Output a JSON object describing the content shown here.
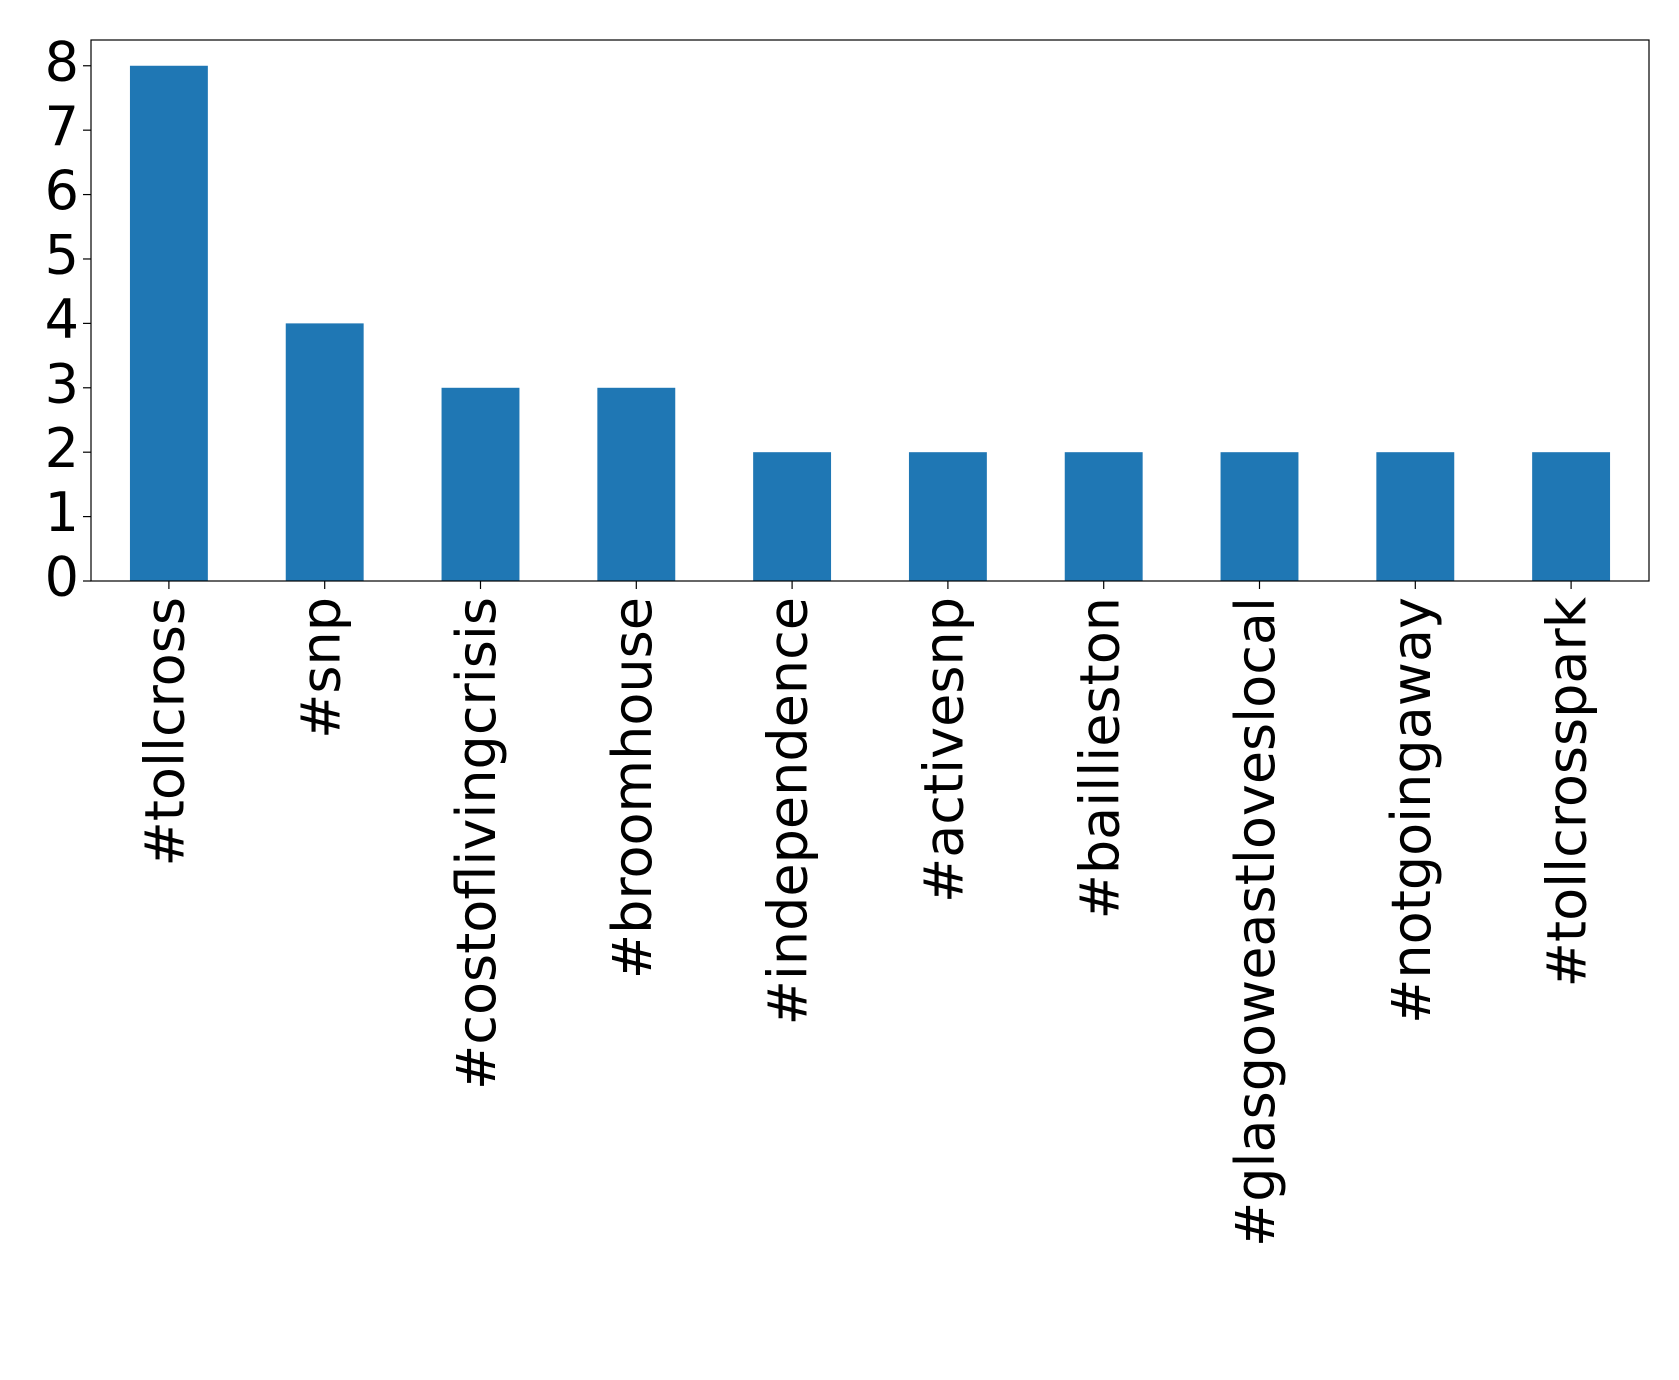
{
  "chart_data": {
    "type": "bar",
    "categories": [
      "#tollcross",
      "#snp",
      "#costoflivingcrisis",
      "#broomhouse",
      "#independence",
      "#activesnp",
      "#baillieston",
      "#glasgoweastloveslocal",
      "#notgoingaway",
      "#tollcrosspark"
    ],
    "values": [
      8,
      4,
      3,
      3,
      2,
      2,
      2,
      2,
      2,
      2
    ],
    "color": "#1f77b4",
    "ylim": [
      0,
      8.4
    ],
    "yticks": [
      0,
      1,
      2,
      3,
      4,
      5,
      6,
      7,
      8
    ],
    "grid": false
  }
}
